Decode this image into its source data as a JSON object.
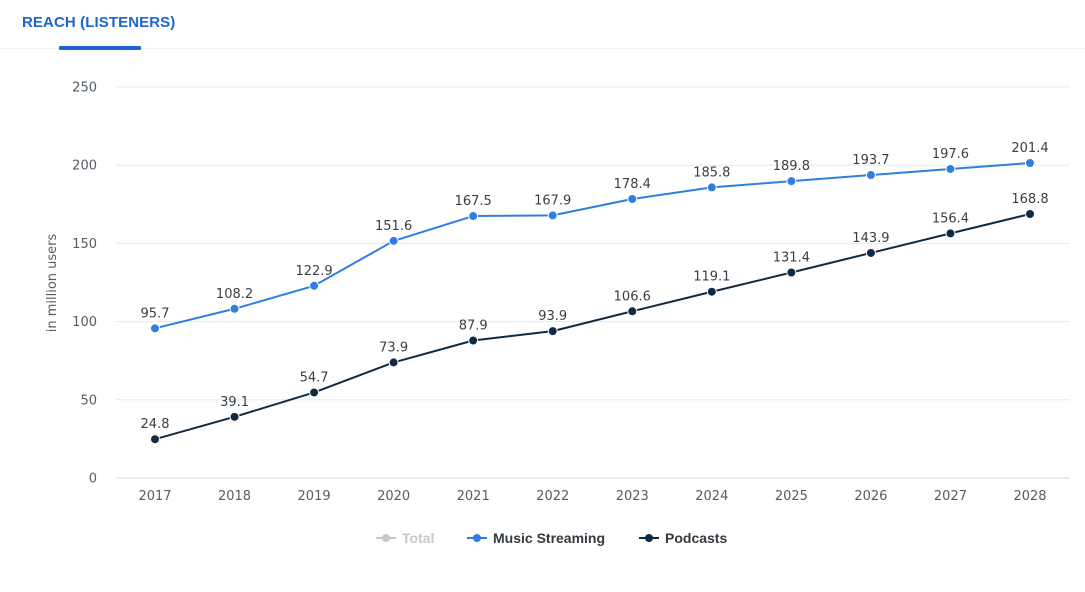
{
  "tabs": [
    {
      "label": "REACH (LISTENERS)",
      "active": true
    }
  ],
  "colors": {
    "accent": "#1a66d1",
    "music": "#2f7ee0",
    "podcasts": "#102a43",
    "total_disabled": "#c8c8c8",
    "grid": "#e6e9ed"
  },
  "chart_data": {
    "type": "line",
    "title": "",
    "xlabel": "",
    "ylabel": "in million users",
    "x": [
      "2017",
      "2018",
      "2019",
      "2020",
      "2021",
      "2022",
      "2023",
      "2024",
      "2025",
      "2026",
      "2027",
      "2028"
    ],
    "ylim": [
      0,
      250
    ],
    "yticks": [
      0,
      50,
      100,
      150,
      200,
      250
    ],
    "grid": true,
    "legend_position": "bottom-center",
    "legend": [
      {
        "name": "Total",
        "enabled": false
      },
      {
        "name": "Music Streaming",
        "enabled": true
      },
      {
        "name": "Podcasts",
        "enabled": true
      }
    ],
    "series": [
      {
        "name": "Music Streaming",
        "values": [
          95.7,
          108.2,
          122.9,
          151.6,
          167.5,
          167.9,
          178.4,
          185.8,
          189.8,
          193.7,
          197.6,
          201.4
        ]
      },
      {
        "name": "Podcasts",
        "values": [
          24.8,
          39.1,
          54.7,
          73.9,
          87.9,
          93.9,
          106.6,
          119.1,
          131.4,
          143.9,
          156.4,
          168.8
        ]
      }
    ]
  }
}
